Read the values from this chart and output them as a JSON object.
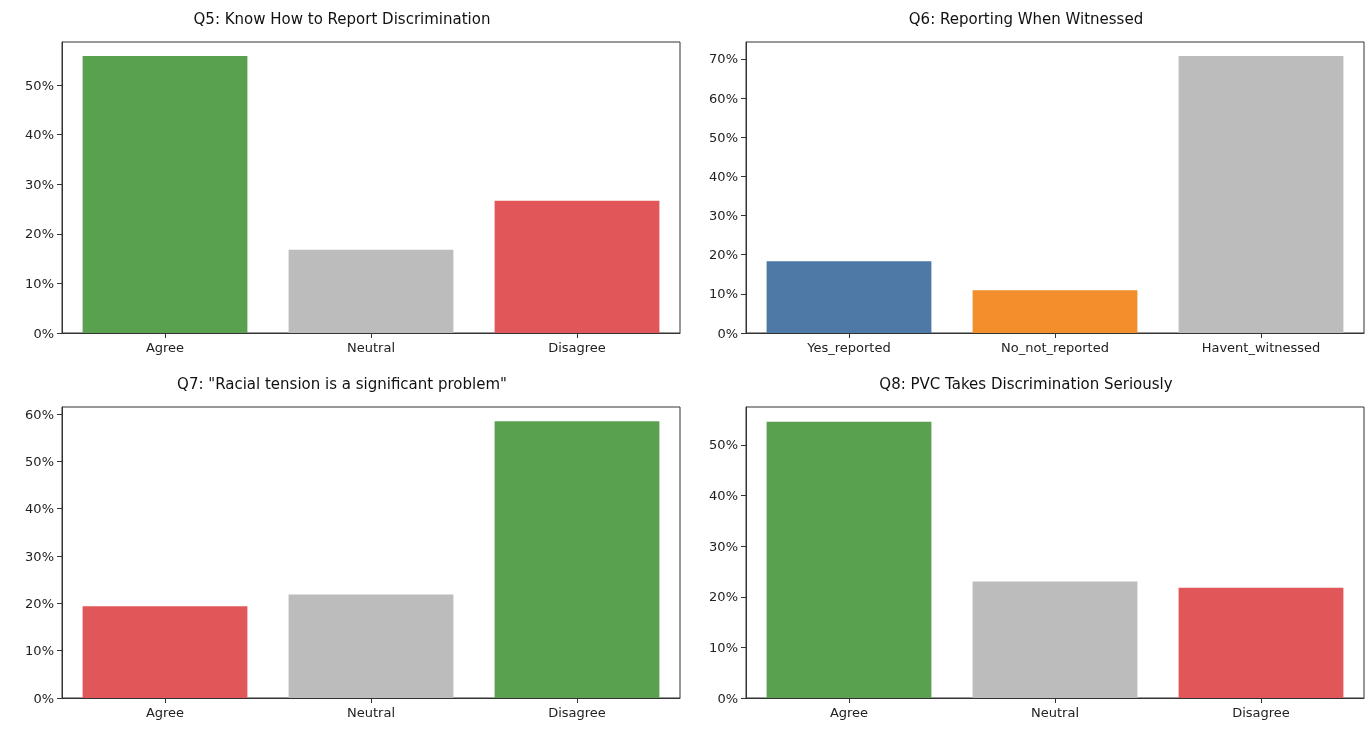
{
  "chart_data": [
    {
      "type": "bar",
      "title": "Q5: Know How to Report Discrimination",
      "categories": [
        "Agree",
        "Neutral",
        "Disagree"
      ],
      "values": [
        55.9,
        16.8,
        26.7
      ],
      "colors": [
        "#59a14f",
        "#bcbcbc",
        "#e15759"
      ],
      "ylim": [
        0,
        58.7
      ],
      "yticks": [
        {
          "value": 0,
          "label": "0%"
        },
        {
          "value": 10,
          "label": "10%"
        },
        {
          "value": 20,
          "label": "20%"
        },
        {
          "value": 30,
          "label": "30%"
        },
        {
          "value": 40,
          "label": "40%"
        },
        {
          "value": 50,
          "label": "50%"
        }
      ],
      "grid": false
    },
    {
      "type": "bar",
      "title": "Q6: Reporting When Witnessed",
      "categories": [
        "Yes_reported",
        "No_not_reported",
        "Havent_witnessed"
      ],
      "values": [
        18.3,
        10.9,
        70.7
      ],
      "colors": [
        "#4e79a7",
        "#f28e2b",
        "#bcbcbc"
      ],
      "ylim": [
        0,
        74.3
      ],
      "yticks": [
        {
          "value": 0,
          "label": "0%"
        },
        {
          "value": 10,
          "label": "10%"
        },
        {
          "value": 20,
          "label": "20%"
        },
        {
          "value": 30,
          "label": "30%"
        },
        {
          "value": 40,
          "label": "40%"
        },
        {
          "value": 50,
          "label": "50%"
        },
        {
          "value": 60,
          "label": "60%"
        },
        {
          "value": 70,
          "label": "70%"
        }
      ],
      "grid": false
    },
    {
      "type": "bar",
      "title": "Q7: \"Racial tension is a significant problem\"",
      "categories": [
        "Agree",
        "Neutral",
        "Disagree"
      ],
      "values": [
        19.4,
        21.9,
        58.5
      ],
      "colors": [
        "#e15759",
        "#bcbcbc",
        "#59a14f"
      ],
      "ylim": [
        0,
        61.5
      ],
      "yticks": [
        {
          "value": 0,
          "label": "0%"
        },
        {
          "value": 10,
          "label": "10%"
        },
        {
          "value": 20,
          "label": "20%"
        },
        {
          "value": 30,
          "label": "30%"
        },
        {
          "value": 40,
          "label": "40%"
        },
        {
          "value": 50,
          "label": "50%"
        },
        {
          "value": 60,
          "label": "60%"
        }
      ],
      "grid": false
    },
    {
      "type": "bar",
      "title": "Q8: PVC Takes Discrimination Seriously",
      "categories": [
        "Agree",
        "Neutral",
        "Disagree"
      ],
      "values": [
        54.6,
        23.0,
        21.8
      ],
      "colors": [
        "#59a14f",
        "#bcbcbc",
        "#e15759"
      ],
      "ylim": [
        0,
        57.5
      ],
      "yticks": [
        {
          "value": 0,
          "label": "0%"
        },
        {
          "value": 10,
          "label": "10%"
        },
        {
          "value": 20,
          "label": "20%"
        },
        {
          "value": 30,
          "label": "30%"
        },
        {
          "value": 40,
          "label": "40%"
        },
        {
          "value": 50,
          "label": "50%"
        }
      ],
      "grid": false
    }
  ]
}
